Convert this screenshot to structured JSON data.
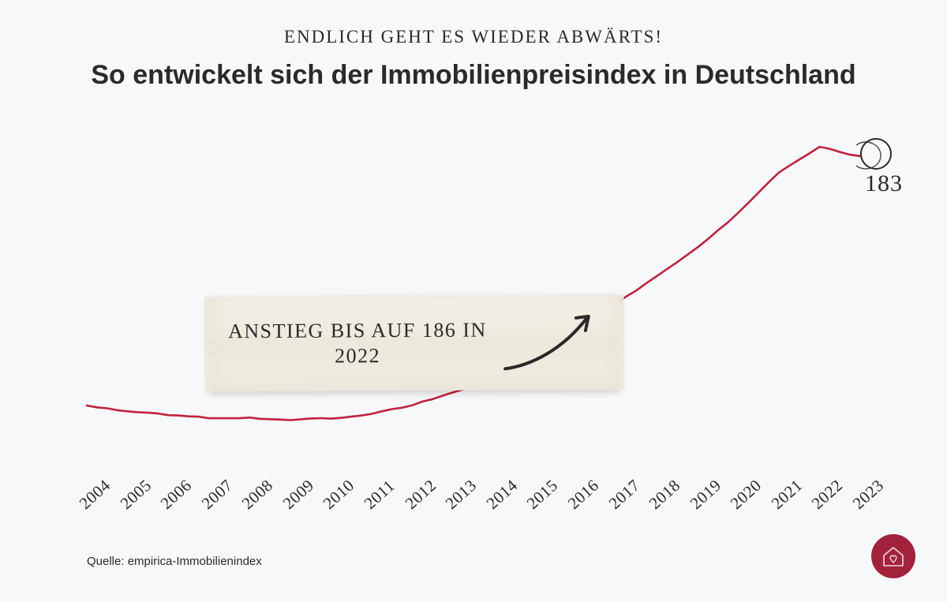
{
  "overline": "Endlich geht es wieder abwärts!",
  "title": "So entwickelt sich der Immobilienpreisindex in Deutschland",
  "source": "Quelle: empirica-Immobilienindex",
  "tape_annotation": "Anstieg bis auf 186 in 2022",
  "endpoint_value": "183",
  "chart": {
    "type": "line",
    "line_color": "#c0223f",
    "line_width": 2.6,
    "background_color": "#f7f8fa",
    "x_labels": [
      "2004",
      "2005",
      "2006",
      "2007",
      "2008",
      "2009",
      "2010",
      "2011",
      "2012",
      "2013",
      "2014",
      "2015",
      "2016",
      "2017",
      "2018",
      "2019",
      "2020",
      "2021",
      "2022",
      "2023"
    ],
    "y_range": [
      90,
      190
    ],
    "values": [
      104,
      102,
      101,
      100,
      100,
      99.5,
      100,
      101.5,
      104,
      108,
      113,
      119,
      127,
      136,
      145,
      154,
      165,
      178,
      186,
      183
    ],
    "circle_color": "#2a2a2a",
    "x_label_fontsize": 21,
    "x_label_rotate_deg": -42,
    "annotation_fontsize": 26,
    "endpoint_fontsize": 30,
    "title_fontsize": 34,
    "overline_fontsize": 23,
    "source_fontsize": 15,
    "text_color": "#2a2a2a",
    "tape_bg_start": "#f4f1e8",
    "tape_bg_mid": "#ece8db",
    "tape_bg_end": "#f0ecdf",
    "logo_bg": "#a2223c",
    "logo_stroke": "#f3d8de"
  }
}
